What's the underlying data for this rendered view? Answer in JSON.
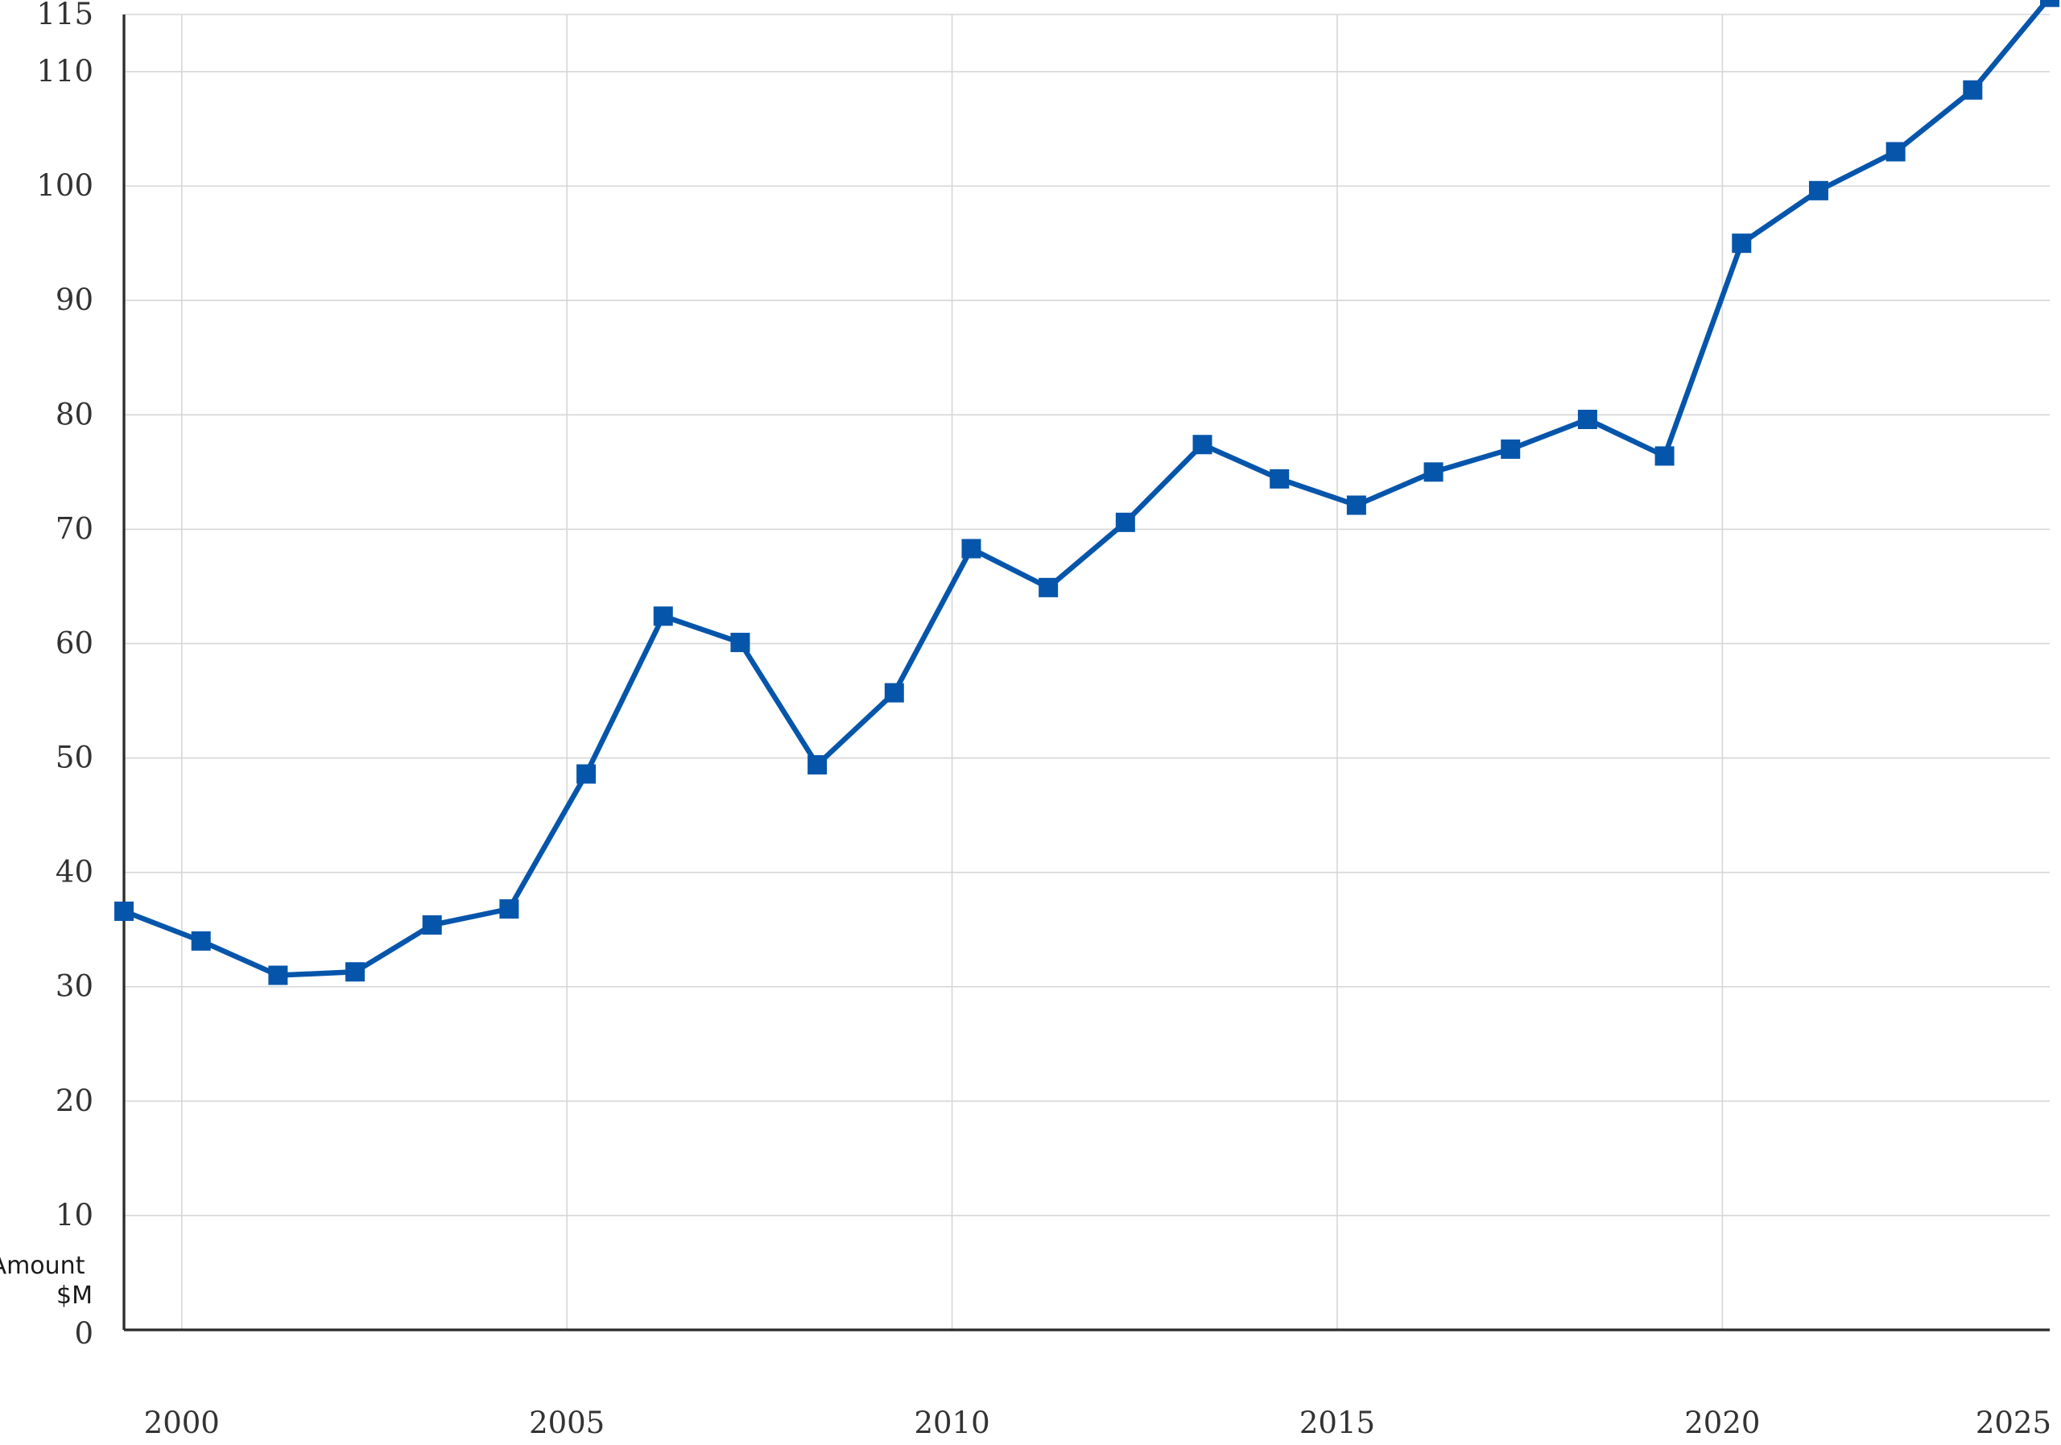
{
  "chart_data": {
    "type": "line",
    "title": "",
    "xlabel": "",
    "ylabel": "Amount $M",
    "ylabel_lines": [
      "Amount",
      "$M"
    ],
    "x_ticks": [
      2000,
      2005,
      2010,
      2015,
      2020,
      2025
    ],
    "y_ticks": [
      0,
      10,
      20,
      30,
      40,
      50,
      60,
      70,
      80,
      90,
      100,
      110,
      115
    ],
    "xlim": [
      1999.25,
      2024.25
    ],
    "ylim": [
      0,
      115
    ],
    "grid": true,
    "colors": {
      "series": "#0555ab",
      "grid": "#d6d6d9",
      "axis": "#2b2b2b",
      "text": "#333333"
    },
    "series": [
      {
        "x": [
          1999.25,
          2000.25,
          2001.25,
          2002.25,
          2003.25,
          2004.25,
          2005.25,
          2006.25,
          2007.25,
          2008.25,
          2009.25,
          2010.25,
          2011.25,
          2012.25,
          2013.25,
          2014.25,
          2015.25,
          2016.25,
          2017.25,
          2018.25,
          2019.25,
          2020.25,
          2021.25,
          2022.25,
          2023.25,
          2024.25
        ],
        "values": [
          36.6,
          34.0,
          31.0,
          31.3,
          35.4,
          36.8,
          48.6,
          62.4,
          60.1,
          49.4,
          55.7,
          68.3,
          64.9,
          70.6,
          77.4,
          74.4,
          72.1,
          75.0,
          77.0,
          79.6,
          76.4,
          95.0,
          99.6,
          103.0,
          108.4,
          116.5
        ],
        "marker": "square"
      }
    ]
  }
}
